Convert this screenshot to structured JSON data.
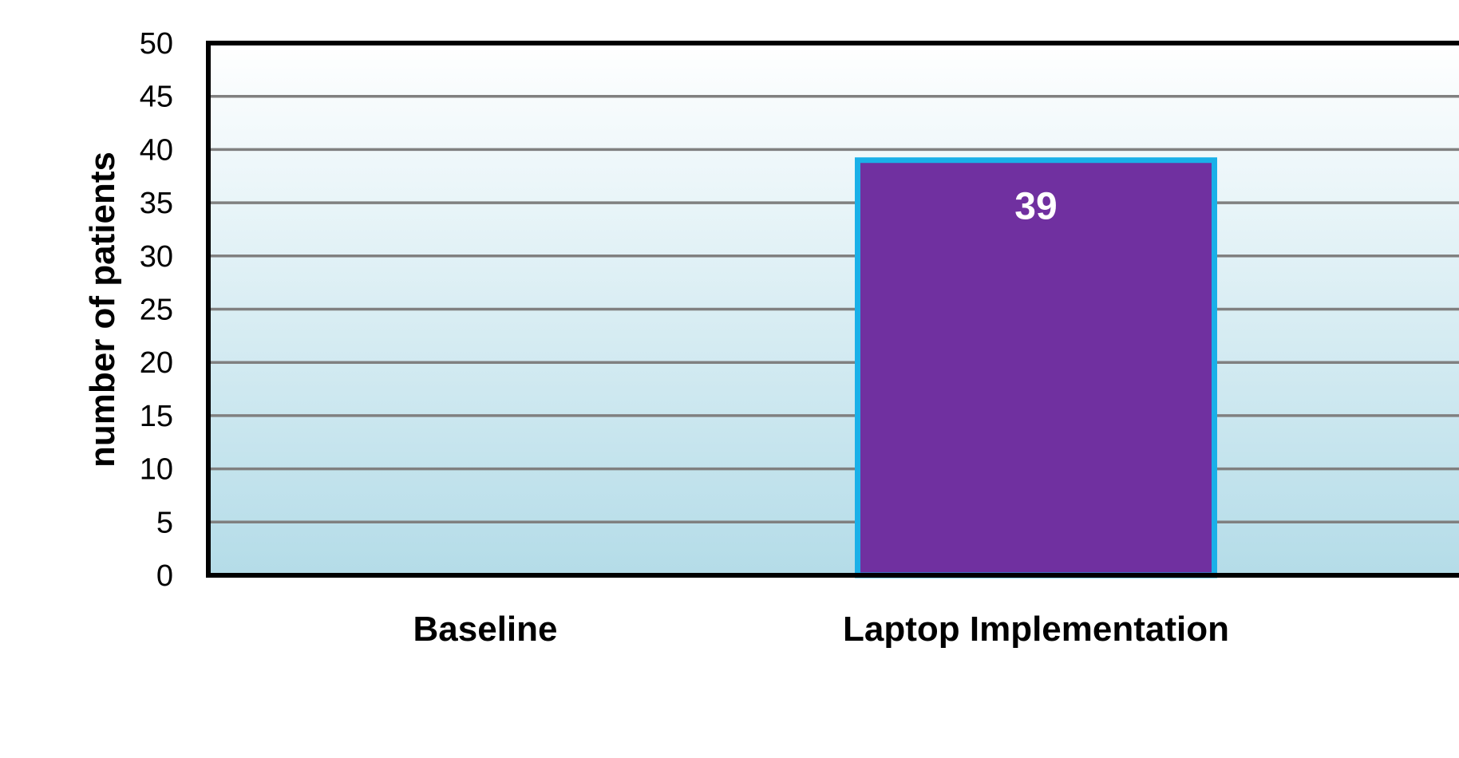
{
  "chart_data": {
    "type": "bar",
    "title": "",
    "xlabel": "",
    "ylabel": "number of patients",
    "categories": [
      "Baseline",
      "Laptop Implementation"
    ],
    "series": [
      {
        "values": [
          0,
          39
        ]
      }
    ],
    "data_labels": [
      "",
      "39"
    ],
    "ylim": [
      0,
      50
    ],
    "yticks": [
      0,
      5,
      10,
      15,
      20,
      25,
      30,
      35,
      40,
      45,
      50
    ],
    "grid": true,
    "legend": "none",
    "colors": {
      "bar_fill": "#7030a0",
      "bar_border": "#1ab0e8",
      "plot_bg_top": "#ffffff",
      "plot_bg_bottom": "#b4dce8",
      "gridline": "#808080",
      "axis": "#000000",
      "data_label": "#ffffff"
    }
  }
}
